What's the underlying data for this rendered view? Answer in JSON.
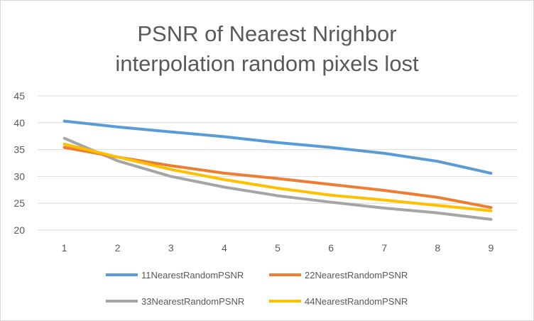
{
  "chart_data": {
    "type": "line",
    "title_lines": [
      "PSNR of Nearest Nrighbor",
      "interpolation random pixels lost"
    ],
    "x": [
      1,
      2,
      3,
      4,
      5,
      6,
      7,
      8,
      9
    ],
    "ylim": [
      20,
      45
    ],
    "yticks": [
      20,
      25,
      30,
      35,
      40,
      45
    ],
    "grid": true,
    "legend_position": "bottom",
    "series": [
      {
        "name": "11NearestRandomPSNR",
        "color": "#5b9bd5",
        "values": [
          40.3,
          39.2,
          38.3,
          37.4,
          36.3,
          35.4,
          34.3,
          32.8,
          30.6
        ]
      },
      {
        "name": "22NearestRandomPSNR",
        "color": "#ed7d31",
        "values": [
          35.4,
          33.6,
          32.0,
          30.6,
          29.6,
          28.5,
          27.4,
          26.1,
          24.2
        ]
      },
      {
        "name": "33NearestRandomPSNR",
        "color": "#a5a5a5",
        "values": [
          37.1,
          32.9,
          30.0,
          28.0,
          26.4,
          25.2,
          24.1,
          23.2,
          22.0
        ]
      },
      {
        "name": "44NearestRandomPSNR",
        "color": "#ffc000",
        "values": [
          36.0,
          33.6,
          31.3,
          29.4,
          27.8,
          26.5,
          25.6,
          24.6,
          23.6
        ]
      }
    ]
  }
}
